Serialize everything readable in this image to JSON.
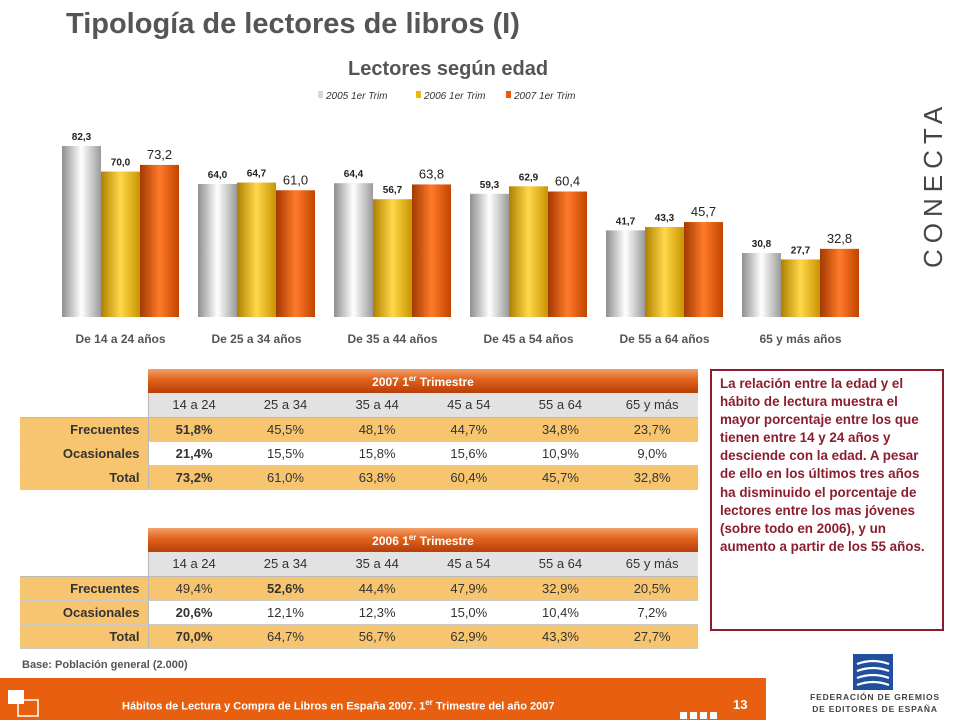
{
  "page": {
    "title": "Tipología de lectores de libros (I)"
  },
  "chart_data": {
    "type": "bar",
    "title": "Lectores según edad",
    "categories": [
      "De 14 a 24 años",
      "De 25 a 34 años",
      "De 35 a 44 años",
      "De 45 a 54 años",
      "De 55 a 64 años",
      "65 y más años"
    ],
    "series": [
      {
        "name": "2005 1er Trim",
        "values": [
          82.3,
          64.0,
          64.4,
          59.3,
          41.7,
          30.8
        ],
        "labels": [
          "82,3",
          "64,0",
          "64,4",
          "59,3",
          "41,7",
          "30,8"
        ],
        "color": "#d9d9d9"
      },
      {
        "name": "2006 1er Trim",
        "values": [
          70.0,
          64.7,
          56.7,
          62.9,
          43.3,
          27.7
        ],
        "labels": [
          "70,0",
          "64,7",
          "56,7",
          "62,9",
          "43,3",
          "27,7"
        ],
        "color": "#f2b800"
      },
      {
        "name": "2007 1er Trim",
        "values": [
          73.2,
          61.0,
          63.8,
          60.4,
          45.7,
          32.8
        ],
        "labels": [
          "73,2",
          "61,0",
          "63,8",
          "60,4",
          "45,7",
          "32,8"
        ],
        "color": "#e85a0c"
      }
    ],
    "ylim": [
      0,
      90
    ],
    "legend": "top-center",
    "grid": false
  },
  "table2007": {
    "title_main": "2007 1",
    "title_sup": "er",
    "title_rest": " Trimestre",
    "columns": [
      "14 a 24",
      "25 a 34",
      "35 a 44",
      "45 a 54",
      "55 a 64",
      "65 y más"
    ],
    "rows": [
      {
        "label": "Frecuentes",
        "values": [
          "51,8%",
          "45,5%",
          "48,1%",
          "44,7%",
          "34,8%",
          "23,7%"
        ],
        "bold": [
          true,
          false,
          false,
          false,
          false,
          false
        ],
        "highlight": true
      },
      {
        "label": "Ocasionales",
        "values": [
          "21,4%",
          "15,5%",
          "15,8%",
          "15,6%",
          "10,9%",
          "9,0%"
        ],
        "bold": [
          true,
          false,
          false,
          false,
          false,
          false
        ],
        "highlight": false
      },
      {
        "label": "Total",
        "values": [
          "73,2%",
          "61,0%",
          "63,8%",
          "60,4%",
          "45,7%",
          "32,8%"
        ],
        "bold": [
          true,
          false,
          false,
          false,
          false,
          false
        ],
        "highlight": true
      }
    ]
  },
  "table2006": {
    "title_main": "2006 1",
    "title_sup": "er",
    "title_rest": " Trimestre",
    "columns": [
      "14 a 24",
      "25 a 34",
      "35 a 44",
      "45 a 54",
      "55 a 64",
      "65 y más"
    ],
    "rows": [
      {
        "label": "Frecuentes",
        "values": [
          "49,4%",
          "52,6%",
          "44,4%",
          "47,9%",
          "32,9%",
          "20,5%"
        ],
        "bold": [
          false,
          true,
          false,
          false,
          false,
          false
        ],
        "highlight": true
      },
      {
        "label": "Ocasionales",
        "values": [
          "20,6%",
          "12,1%",
          "12,3%",
          "15,0%",
          "10,4%",
          "7,2%"
        ],
        "bold": [
          true,
          false,
          false,
          false,
          false,
          false
        ],
        "highlight": false
      },
      {
        "label": "Total",
        "values": [
          "70,0%",
          "64,7%",
          "56,7%",
          "62,9%",
          "43,3%",
          "27,7%"
        ],
        "bold": [
          true,
          false,
          false,
          false,
          false,
          false
        ],
        "highlight": true
      }
    ]
  },
  "note": "La relación entre la edad y el hábito de lectura muestra el mayor porcentaje entre los que tienen entre 14 y 24 años y desciende con la edad. A pesar de ello en los últimos tres años ha disminuido el porcentaje de lectores entre los mas jóvenes (sobre todo en 2006), y un aumento a partir de los 55 años.",
  "base": "Base: Población general (2.000)",
  "footer": {
    "text_main": "Hábitos de Lectura y Compra de Libros en España 2007. 1",
    "text_sup": "er",
    "text_rest": " Trimestre del año 2007",
    "page_number": "13"
  },
  "brand": {
    "name": "CONECTA",
    "color": "#e85a0c"
  },
  "federation": {
    "line1": "FEDERACIÓN DE GREMIOS",
    "line2": "DE EDITORES DE ESPAÑA",
    "color": "#1f4f9e"
  }
}
